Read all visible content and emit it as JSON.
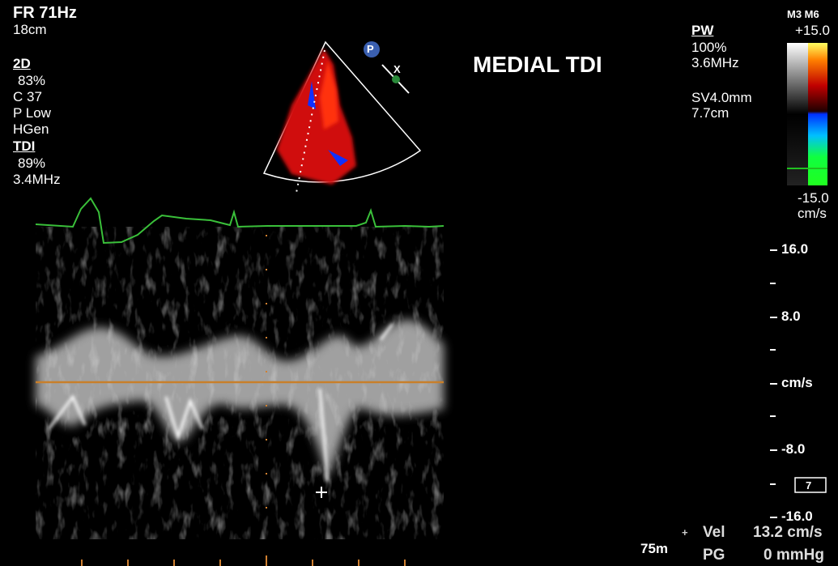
{
  "left_panel": {
    "frame_rate": "FR 71Hz",
    "depth": "18cm",
    "mode_2d": {
      "title": "2D",
      "lines": [
        "83%",
        "C 37",
        "P Low",
        "HGen"
      ]
    },
    "tdi": {
      "title": "TDI",
      "lines": [
        "89%",
        "3.4MHz"
      ]
    }
  },
  "probe_marker": "P",
  "focus_marker": "X",
  "title": "MEDIAL TDI",
  "pw_panel": {
    "title": "PW",
    "lines": [
      "100%",
      "3.6MHz"
    ],
    "sample": [
      "SV4.0mm",
      "7.7cm"
    ]
  },
  "color_bar": {
    "mode": "M3 M6",
    "top": "+15.0",
    "bottom": "-15.0",
    "unit": "cm/s"
  },
  "velocity_scale": {
    "labels": [
      "16.0",
      "8.0",
      "cm/s",
      "-8.0",
      "-16.0"
    ]
  },
  "gain_box": "7",
  "measurements": {
    "sweep": "75m",
    "items": [
      {
        "label": "Vel",
        "value": "13.2 cm/s"
      },
      {
        "label": "PG",
        "value": "0 mmHg"
      }
    ]
  }
}
